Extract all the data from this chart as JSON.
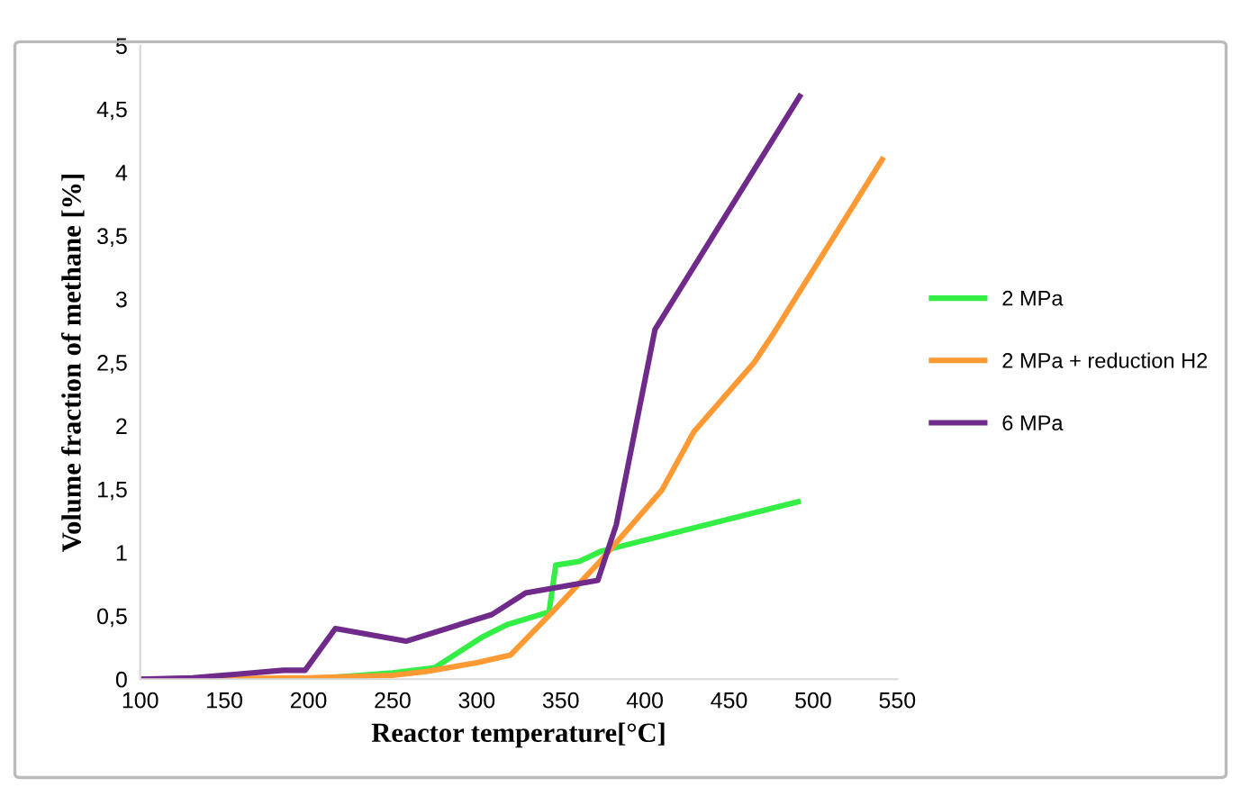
{
  "chart_data": {
    "type": "line",
    "xlabel": "Reactor temperature[°C]",
    "ylabel": "Volume fraction of methane [%]",
    "xlim": [
      100,
      550
    ],
    "xticks": [
      100,
      150,
      200,
      250,
      300,
      350,
      400,
      450,
      500,
      550
    ],
    "ylim": [
      0,
      5
    ],
    "yticks": [
      0,
      {
        "value": 0.5,
        "label": "0,5"
      },
      1,
      {
        "value": 1.5,
        "label": "1,5"
      },
      2,
      {
        "value": 2.5,
        "label": "2,5"
      },
      3,
      {
        "value": 3.5,
        "label": "3,5"
      },
      4,
      {
        "value": 4.5,
        "label": "4,5"
      },
      5
    ],
    "grid": false,
    "legend": "right",
    "marker": "none",
    "line_style": "solid",
    "series": [
      {
        "name": "2 MPa",
        "color": "#33ee44",
        "x": [
          100,
          200,
          250,
          275,
          303,
          318,
          343,
          347,
          361,
          374,
          491
        ],
        "values": [
          0,
          0,
          0.05,
          0.09,
          0.33,
          0.43,
          0.53,
          0.9,
          0.93,
          1.01,
          1.4
        ]
      },
      {
        "name": "2 MPa + reduction H2",
        "color": "#ff9933",
        "x": [
          100,
          200,
          250,
          270,
          300,
          320,
          345,
          372,
          410,
          429,
          465,
          476,
          541
        ],
        "values": [
          0,
          0.01,
          0.03,
          0.06,
          0.13,
          0.19,
          0.53,
          0.91,
          1.49,
          1.95,
          2.5,
          2.72,
          4.1
        ]
      },
      {
        "name": "6 MPa",
        "color": "#6f2a8a",
        "x": [
          100,
          131,
          185,
          198,
          216,
          258,
          309,
          329,
          372,
          383,
          406,
          492
        ],
        "values": [
          0,
          0.01,
          0.07,
          0.07,
          0.4,
          0.3,
          0.51,
          0.68,
          0.78,
          1.22,
          2.76,
          4.6
        ]
      }
    ]
  }
}
